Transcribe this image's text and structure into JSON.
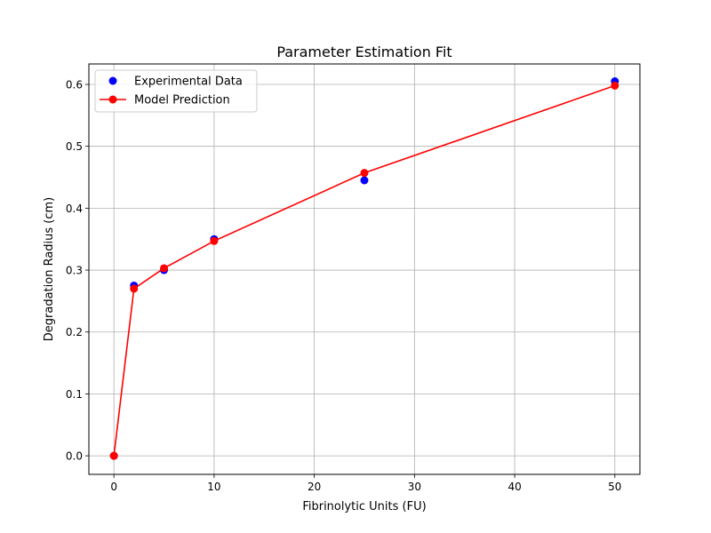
{
  "chart_data": {
    "type": "scatter",
    "title": "Parameter Estimation Fit",
    "xlabel": "Fibrinolytic Units (FU)",
    "ylabel": "Degradation Radius (cm)",
    "xlim": [
      -2.5,
      52.5
    ],
    "ylim": [
      -0.03,
      0.633
    ],
    "xticks": [
      0,
      10,
      20,
      30,
      40,
      50
    ],
    "yticks": [
      0.0,
      0.1,
      0.2,
      0.3,
      0.4,
      0.5,
      0.6
    ],
    "xtick_labels": [
      "0",
      "10",
      "20",
      "30",
      "40",
      "50"
    ],
    "ytick_labels": [
      "0.0",
      "0.1",
      "0.2",
      "0.3",
      "0.4",
      "0.5",
      "0.6"
    ],
    "grid": true,
    "legend_position": "top-left",
    "series": [
      {
        "name": "Experimental Data",
        "kind": "scatter",
        "color": "#0000ff",
        "x": [
          0,
          2,
          5,
          10,
          25,
          50
        ],
        "y": [
          0.0,
          0.275,
          0.3,
          0.35,
          0.445,
          0.605
        ]
      },
      {
        "name": "Model Prediction",
        "kind": "line-marker",
        "color": "#ff0000",
        "x": [
          0,
          2,
          5,
          10,
          25,
          50
        ],
        "y": [
          0.0,
          0.27,
          0.303,
          0.347,
          0.457,
          0.598
        ]
      }
    ]
  }
}
